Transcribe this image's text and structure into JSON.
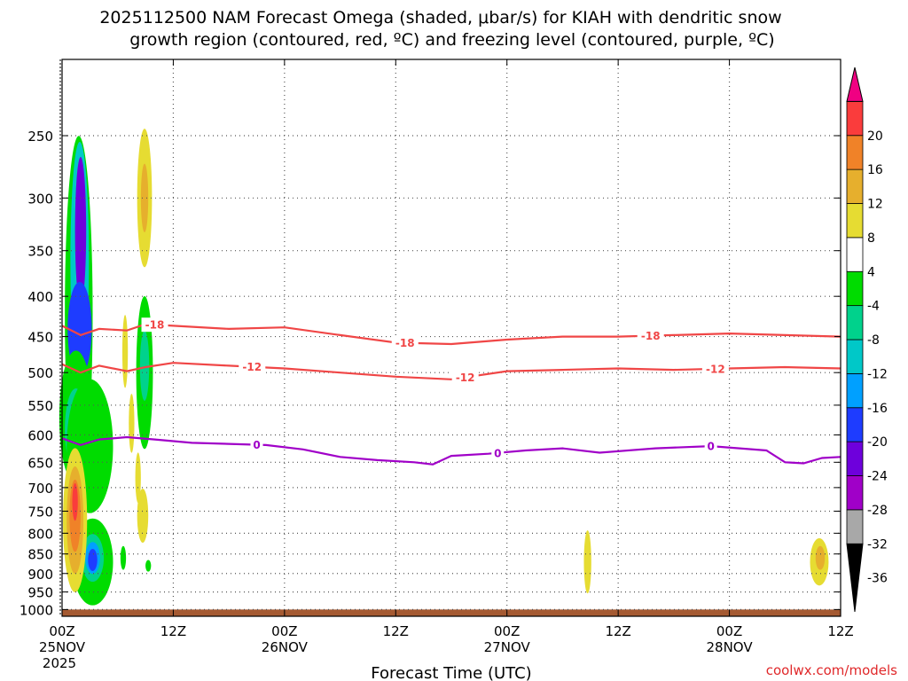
{
  "chart_data": {
    "type": "heatmap",
    "title_line1": "2025112500 NAM Forecast Omega (shaded, μbar/s) for KIAH with dendritic snow",
    "title_line2": "growth region (contoured, red, ºC) and freezing level (contoured, purple, ºC)",
    "xlabel": "Forecast Time (UTC)",
    "credit": "coolwx.com/models",
    "x_hours_range": [
      0,
      84
    ],
    "x_ticks": [
      {
        "h": 0,
        "label": "00Z",
        "sub": "25NOV",
        "sub2": "2025"
      },
      {
        "h": 12,
        "label": "12Z",
        "sub": "",
        "sub2": ""
      },
      {
        "h": 24,
        "label": "00Z",
        "sub": "26NOV",
        "sub2": ""
      },
      {
        "h": 36,
        "label": "12Z",
        "sub": "",
        "sub2": ""
      },
      {
        "h": 48,
        "label": "00Z",
        "sub": "27NOV",
        "sub2": ""
      },
      {
        "h": 60,
        "label": "12Z",
        "sub": "",
        "sub2": ""
      },
      {
        "h": 72,
        "label": "00Z",
        "sub": "28NOV",
        "sub2": ""
      },
      {
        "h": 84,
        "label": "12Z",
        "sub": "",
        "sub2": ""
      }
    ],
    "y_ticks_hpa": [
      250,
      300,
      350,
      400,
      450,
      500,
      550,
      600,
      650,
      700,
      750,
      800,
      850,
      900,
      950,
      1000
    ],
    "y_range_hpa": [
      200,
      1020
    ],
    "colorbar": {
      "colors": [
        "#ffffff",
        "#000000",
        "#a8a8a8",
        "#a000c8",
        "#6e00dc",
        "#1e3cff",
        "#00a0ff",
        "#00c8c8",
        "#00d28c",
        "#00dc00",
        "#ffffff",
        "#e6dc32",
        "#e6af2d",
        "#f08228",
        "#fa3c3c",
        "#f00082"
      ],
      "labels": [
        "-36",
        "-32",
        "-28",
        "-24",
        "-20",
        "-16",
        "-12",
        "-8",
        "-4",
        "4",
        "8",
        "12",
        "16",
        "20"
      ]
    },
    "omega_blobs": [
      {
        "h": 1.8,
        "p": 420,
        "w": 1.5,
        "hp": 200,
        "color": "#00dc00"
      },
      {
        "h": 1.9,
        "p": 360,
        "w": 1.0,
        "hp": 120,
        "color": "#00c8c8"
      },
      {
        "h": 2.0,
        "p": 330,
        "w": 0.6,
        "hp": 70,
        "color": "#6e00dc"
      },
      {
        "h": 1.9,
        "p": 440,
        "w": 1.3,
        "hp": 60,
        "color": "#1e3cff"
      },
      {
        "h": 1.5,
        "p": 570,
        "w": 1.8,
        "hp": 110,
        "color": "#00dc00"
      },
      {
        "h": 1.5,
        "p": 590,
        "w": 1.2,
        "hp": 70,
        "color": "#00d28c"
      },
      {
        "h": 3.0,
        "p": 620,
        "w": 2.5,
        "hp": 120,
        "color": "#00dc00"
      },
      {
        "h": 3.3,
        "p": 870,
        "w": 2.2,
        "hp": 110,
        "color": "#00dc00"
      },
      {
        "h": 3.3,
        "p": 860,
        "w": 1.2,
        "hp": 60,
        "color": "#00d28c"
      },
      {
        "h": 3.3,
        "p": 860,
        "w": 0.8,
        "hp": 40,
        "color": "#00a0ff"
      },
      {
        "h": 3.3,
        "p": 865,
        "w": 0.5,
        "hp": 28,
        "color": "#1e3cff"
      },
      {
        "h": 1.4,
        "p": 770,
        "w": 1.3,
        "hp": 160,
        "color": "#e6dc32"
      },
      {
        "h": 1.4,
        "p": 770,
        "w": 0.9,
        "hp": 120,
        "color": "#e6af2d"
      },
      {
        "h": 1.4,
        "p": 760,
        "w": 0.6,
        "hp": 80,
        "color": "#f08228"
      },
      {
        "h": 1.4,
        "p": 730,
        "w": 0.3,
        "hp": 40,
        "color": "#fa3c3c"
      },
      {
        "h": 8.9,
        "p": 300,
        "w": 0.8,
        "hp": 60,
        "color": "#e6dc32"
      },
      {
        "h": 8.9,
        "p": 300,
        "w": 0.4,
        "hp": 30,
        "color": "#e6af2d"
      },
      {
        "h": 8.9,
        "p": 500,
        "w": 0.9,
        "hp": 110,
        "color": "#00dc00"
      },
      {
        "h": 8.9,
        "p": 490,
        "w": 0.5,
        "hp": 50,
        "color": "#00d28c"
      },
      {
        "h": 8.7,
        "p": 760,
        "w": 0.6,
        "hp": 60,
        "color": "#e6dc32"
      },
      {
        "h": 9.3,
        "p": 880,
        "w": 0.3,
        "hp": 15,
        "color": "#00dc00"
      },
      {
        "h": 6.6,
        "p": 860,
        "w": 0.3,
        "hp": 30,
        "color": "#00dc00"
      },
      {
        "h": 6.8,
        "p": 470,
        "w": 0.3,
        "hp": 50,
        "color": "#e6dc32"
      },
      {
        "h": 7.5,
        "p": 580,
        "w": 0.3,
        "hp": 50,
        "color": "#e6dc32"
      },
      {
        "h": 8.2,
        "p": 680,
        "w": 0.3,
        "hp": 50,
        "color": "#e6dc32"
      },
      {
        "h": 56.7,
        "p": 870,
        "w": 0.4,
        "hp": 80,
        "color": "#e6dc32"
      },
      {
        "h": 81.7,
        "p": 870,
        "w": 1.0,
        "hp": 60,
        "color": "#e6dc32"
      },
      {
        "h": 81.8,
        "p": 860,
        "w": 0.5,
        "hp": 30,
        "color": "#e6af2d"
      }
    ],
    "contours": [
      {
        "name": "-18",
        "color": "#f04646",
        "points": [
          [
            0,
            436
          ],
          [
            2,
            448
          ],
          [
            4,
            440
          ],
          [
            7,
            442
          ],
          [
            9,
            434
          ],
          [
            12,
            436
          ],
          [
            18,
            440
          ],
          [
            24,
            438
          ],
          [
            30,
            448
          ],
          [
            36,
            458
          ],
          [
            42,
            460
          ],
          [
            48,
            454
          ],
          [
            54,
            450
          ],
          [
            60,
            450
          ],
          [
            66,
            448
          ],
          [
            72,
            446
          ],
          [
            78,
            448
          ],
          [
            84,
            450
          ]
        ],
        "labels": [
          {
            "h": 10,
            "text": "-18"
          },
          {
            "h": 37,
            "text": "-18"
          },
          {
            "h": 63.5,
            "text": "-18"
          }
        ]
      },
      {
        "name": "-12",
        "color": "#f04646",
        "points": [
          [
            0,
            488
          ],
          [
            2,
            500
          ],
          [
            4,
            490
          ],
          [
            7,
            498
          ],
          [
            9,
            492
          ],
          [
            12,
            486
          ],
          [
            18,
            490
          ],
          [
            24,
            494
          ],
          [
            30,
            500
          ],
          [
            36,
            506
          ],
          [
            42,
            510
          ],
          [
            48,
            498
          ],
          [
            54,
            496
          ],
          [
            60,
            494
          ],
          [
            66,
            496
          ],
          [
            72,
            494
          ],
          [
            78,
            492
          ],
          [
            84,
            494
          ]
        ],
        "labels": [
          {
            "h": 20.5,
            "text": "-12"
          },
          {
            "h": 43.5,
            "text": "-12"
          },
          {
            "h": 70.5,
            "text": "-12"
          }
        ]
      },
      {
        "name": "0",
        "color": "#a000c8",
        "points": [
          [
            0,
            606
          ],
          [
            2,
            618
          ],
          [
            4,
            608
          ],
          [
            7,
            604
          ],
          [
            10,
            608
          ],
          [
            14,
            614
          ],
          [
            18,
            616
          ],
          [
            22,
            618
          ],
          [
            26,
            626
          ],
          [
            30,
            640
          ],
          [
            34,
            646
          ],
          [
            38,
            650
          ],
          [
            40,
            654
          ],
          [
            42,
            638
          ],
          [
            46,
            634
          ],
          [
            50,
            628
          ],
          [
            54,
            624
          ],
          [
            58,
            632
          ],
          [
            64,
            624
          ],
          [
            70,
            620
          ],
          [
            76,
            628
          ],
          [
            78,
            650
          ],
          [
            80,
            652
          ],
          [
            82,
            642
          ],
          [
            84,
            640
          ]
        ],
        "labels": [
          {
            "h": 21,
            "text": "0"
          },
          {
            "h": 47,
            "text": "0"
          },
          {
            "h": 70,
            "text": "0"
          }
        ]
      }
    ],
    "terrain_color": "#a55a32"
  }
}
